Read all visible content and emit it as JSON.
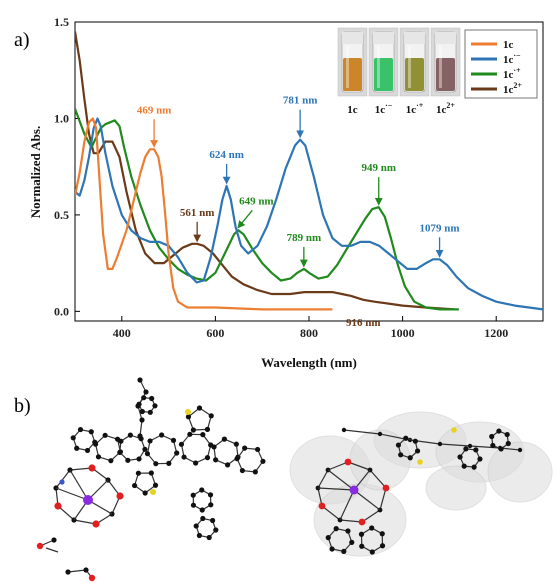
{
  "panels": {
    "a_label": "a)",
    "b_label": "b)"
  },
  "chart_data": {
    "type": "line",
    "xlabel": "Wavelength (nm)",
    "ylabel": "Normalized Abs.",
    "xlim": [
      300,
      1300
    ],
    "ylim": [
      -0.05,
      1.5
    ],
    "xticks": [
      {
        "value": 400,
        "label": "400"
      },
      {
        "value": 600,
        "label": "600"
      },
      {
        "value": 800,
        "label": "800"
      },
      {
        "value": 1000,
        "label": "1000"
      },
      {
        "value": 1200,
        "label": "1200"
      }
    ],
    "yticks": [
      {
        "value": 0.0,
        "label": "0.0"
      },
      {
        "value": 0.5,
        "label": "0.5"
      },
      {
        "value": 1.0,
        "label": "1.0"
      },
      {
        "value": 1.5,
        "label": "1.5"
      }
    ],
    "grid": false,
    "legend_position": "top-right",
    "series": [
      {
        "name": "1c",
        "sup": "",
        "color": "#ED7D31",
        "points": [
          [
            300,
            0.6
          ],
          [
            310,
            0.72
          ],
          [
            320,
            0.88
          ],
          [
            330,
            0.98
          ],
          [
            338,
            1.0
          ],
          [
            345,
            0.95
          ],
          [
            352,
            0.7
          ],
          [
            360,
            0.4
          ],
          [
            370,
            0.22
          ],
          [
            380,
            0.22
          ],
          [
            390,
            0.28
          ],
          [
            400,
            0.35
          ],
          [
            410,
            0.42
          ],
          [
            420,
            0.52
          ],
          [
            430,
            0.62
          ],
          [
            440,
            0.72
          ],
          [
            450,
            0.8
          ],
          [
            460,
            0.84
          ],
          [
            469,
            0.84
          ],
          [
            478,
            0.8
          ],
          [
            485,
            0.7
          ],
          [
            492,
            0.52
          ],
          [
            500,
            0.3
          ],
          [
            510,
            0.12
          ],
          [
            520,
            0.05
          ],
          [
            540,
            0.02
          ],
          [
            600,
            0.02
          ],
          [
            700,
            0.01
          ],
          [
            800,
            0.01
          ],
          [
            850,
            0.01
          ]
        ]
      },
      {
        "name": "1c",
        "sup": "·−",
        "color": "#2E75B6",
        "points": [
          [
            300,
            0.62
          ],
          [
            310,
            0.6
          ],
          [
            320,
            0.68
          ],
          [
            330,
            0.8
          ],
          [
            340,
            0.95
          ],
          [
            348,
            1.0
          ],
          [
            355,
            0.96
          ],
          [
            365,
            0.82
          ],
          [
            380,
            0.65
          ],
          [
            400,
            0.5
          ],
          [
            420,
            0.42
          ],
          [
            440,
            0.38
          ],
          [
            460,
            0.36
          ],
          [
            480,
            0.36
          ],
          [
            500,
            0.34
          ],
          [
            520,
            0.28
          ],
          [
            540,
            0.2
          ],
          [
            560,
            0.15
          ],
          [
            575,
            0.16
          ],
          [
            590,
            0.28
          ],
          [
            605,
            0.45
          ],
          [
            615,
            0.58
          ],
          [
            624,
            0.65
          ],
          [
            633,
            0.58
          ],
          [
            643,
            0.44
          ],
          [
            655,
            0.34
          ],
          [
            670,
            0.3
          ],
          [
            690,
            0.34
          ],
          [
            710,
            0.44
          ],
          [
            730,
            0.58
          ],
          [
            750,
            0.74
          ],
          [
            770,
            0.86
          ],
          [
            781,
            0.89
          ],
          [
            792,
            0.86
          ],
          [
            810,
            0.7
          ],
          [
            830,
            0.5
          ],
          [
            850,
            0.38
          ],
          [
            870,
            0.34
          ],
          [
            890,
            0.34
          ],
          [
            910,
            0.36
          ],
          [
            930,
            0.36
          ],
          [
            950,
            0.34
          ],
          [
            970,
            0.3
          ],
          [
            990,
            0.26
          ],
          [
            1010,
            0.22
          ],
          [
            1030,
            0.22
          ],
          [
            1050,
            0.25
          ],
          [
            1065,
            0.27
          ],
          [
            1079,
            0.27
          ],
          [
            1095,
            0.24
          ],
          [
            1115,
            0.18
          ],
          [
            1140,
            0.12
          ],
          [
            1170,
            0.08
          ],
          [
            1200,
            0.05
          ],
          [
            1240,
            0.03
          ],
          [
            1270,
            0.02
          ],
          [
            1300,
            0.01
          ]
        ]
      },
      {
        "name": "1c",
        "sup": "·+",
        "color": "#208A1D",
        "points": [
          [
            300,
            1.05
          ],
          [
            320,
            0.92
          ],
          [
            335,
            0.85
          ],
          [
            345,
            0.9
          ],
          [
            355,
            0.95
          ],
          [
            365,
            0.97
          ],
          [
            375,
            0.98
          ],
          [
            385,
            0.99
          ],
          [
            395,
            0.96
          ],
          [
            405,
            0.85
          ],
          [
            420,
            0.7
          ],
          [
            440,
            0.55
          ],
          [
            460,
            0.42
          ],
          [
            480,
            0.33
          ],
          [
            500,
            0.27
          ],
          [
            520,
            0.22
          ],
          [
            540,
            0.19
          ],
          [
            560,
            0.17
          ],
          [
            580,
            0.16
          ],
          [
            600,
            0.2
          ],
          [
            620,
            0.3
          ],
          [
            640,
            0.4
          ],
          [
            649,
            0.42
          ],
          [
            660,
            0.4
          ],
          [
            680,
            0.32
          ],
          [
            700,
            0.25
          ],
          [
            720,
            0.2
          ],
          [
            740,
            0.16
          ],
          [
            760,
            0.17
          ],
          [
            775,
            0.2
          ],
          [
            789,
            0.22
          ],
          [
            800,
            0.2
          ],
          [
            820,
            0.17
          ],
          [
            840,
            0.18
          ],
          [
            860,
            0.24
          ],
          [
            880,
            0.32
          ],
          [
            900,
            0.4
          ],
          [
            920,
            0.48
          ],
          [
            935,
            0.53
          ],
          [
            949,
            0.54
          ],
          [
            962,
            0.49
          ],
          [
            975,
            0.38
          ],
          [
            990,
            0.24
          ],
          [
            1005,
            0.13
          ],
          [
            1025,
            0.05
          ],
          [
            1050,
            0.02
          ],
          [
            1080,
            0.01
          ],
          [
            1120,
            0.01
          ]
        ]
      },
      {
        "name": "1c",
        "sup": "2+",
        "color": "#6B3A18",
        "points": [
          [
            300,
            1.45
          ],
          [
            310,
            1.3
          ],
          [
            320,
            1.1
          ],
          [
            330,
            0.92
          ],
          [
            340,
            0.82
          ],
          [
            350,
            0.82
          ],
          [
            365,
            0.88
          ],
          [
            380,
            0.88
          ],
          [
            395,
            0.8
          ],
          [
            410,
            0.62
          ],
          [
            430,
            0.42
          ],
          [
            450,
            0.3
          ],
          [
            470,
            0.25
          ],
          [
            490,
            0.25
          ],
          [
            510,
            0.29
          ],
          [
            530,
            0.33
          ],
          [
            550,
            0.35
          ],
          [
            561,
            0.35
          ],
          [
            575,
            0.34
          ],
          [
            595,
            0.3
          ],
          [
            615,
            0.24
          ],
          [
            635,
            0.18
          ],
          [
            660,
            0.14
          ],
          [
            690,
            0.11
          ],
          [
            720,
            0.09
          ],
          [
            760,
            0.09
          ],
          [
            790,
            0.1
          ],
          [
            820,
            0.1
          ],
          [
            850,
            0.1
          ],
          [
            870,
            0.09
          ],
          [
            890,
            0.08
          ],
          [
            916,
            0.06
          ],
          [
            940,
            0.05
          ],
          [
            970,
            0.04
          ],
          [
            1000,
            0.03
          ],
          [
            1050,
            0.02
          ],
          [
            1110,
            0.01
          ]
        ]
      }
    ],
    "annotations": [
      {
        "text": "469 nm",
        "series": 0,
        "x": 469,
        "y": 0.84
      },
      {
        "text": "624 nm",
        "series": 1,
        "x": 624,
        "y": 0.65
      },
      {
        "text": "781 nm",
        "series": 1,
        "x": 781,
        "y": 0.89
      },
      {
        "text": "1079 nm",
        "series": 1,
        "x": 1079,
        "y": 0.27
      },
      {
        "text": "649 nm",
        "series": 2,
        "x": 649,
        "y": 0.42
      },
      {
        "text": "789 nm",
        "series": 2,
        "x": 789,
        "y": 0.22
      },
      {
        "text": "949 nm",
        "series": 2,
        "x": 949,
        "y": 0.54
      },
      {
        "text": "561 nm",
        "series": 3,
        "x": 561,
        "y": 0.35
      },
      {
        "text": "916 nm",
        "series": 3,
        "x": 916,
        "y": 0.06
      }
    ]
  },
  "vials": [
    {
      "name": "1c",
      "sup": "",
      "liquid": "#C9801E"
    },
    {
      "name": "1c",
      "sup": "·−",
      "liquid": "#2FBF62"
    },
    {
      "name": "1c",
      "sup": "·+",
      "liquid": "#8C8A2A"
    },
    {
      "name": "1c",
      "sup": "2+",
      "liquid": "#7E5A5C"
    }
  ],
  "molecule_colors": {
    "carbon": "#111111",
    "oxygen": "#E02020",
    "sulfur": "#E8D21E",
    "metal": "#8A2BE2",
    "nitrogen": "#3A56C8"
  }
}
